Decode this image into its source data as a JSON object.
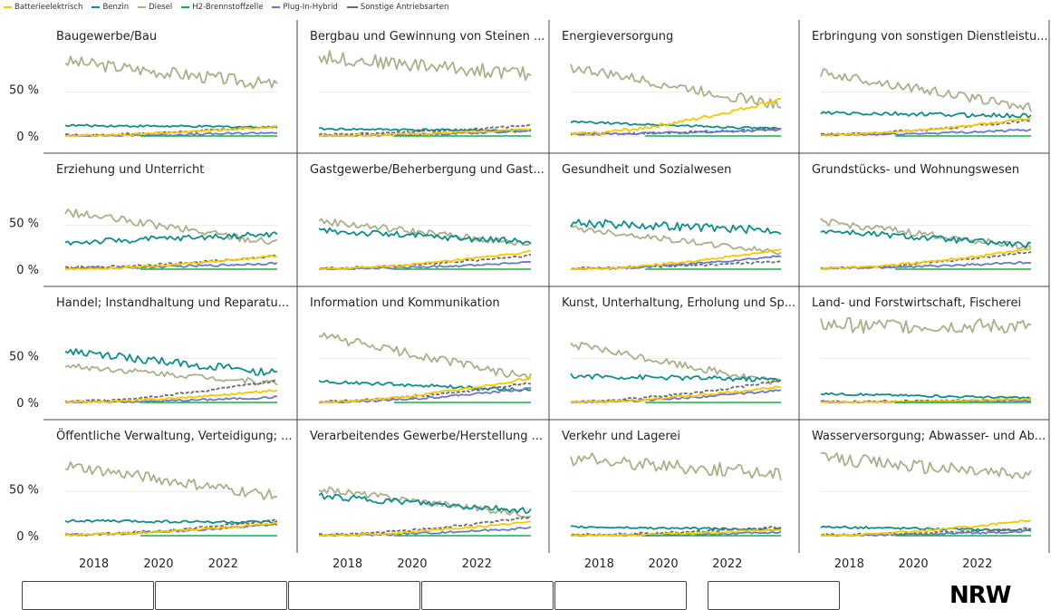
{
  "legend": {
    "series": [
      {
        "name": "Batterieelektrisch",
        "color": "#F5C800",
        "dash": false
      },
      {
        "name": "Benzin",
        "color": "#118C8C",
        "dash": false
      },
      {
        "name": "Diesel",
        "color": "#A8B08C",
        "dash": false
      },
      {
        "name": "H2-Brennstoffzelle",
        "color": "#12B04C",
        "dash": false
      },
      {
        "name": "Plug-In-Hybrid",
        "color": "#6E76C8",
        "dash": false
      },
      {
        "name": "Sonstige Antriebsarten",
        "color": "#6B6B6B",
        "dash": true
      }
    ]
  },
  "axis": {
    "y_tick_labels": [
      "50 %",
      "0 %"
    ],
    "x_tick_labels": [
      "2018",
      "2020",
      "2022"
    ]
  },
  "chart_data": {
    "type": "line",
    "y_unit": "%",
    "ylim": [
      0,
      100
    ],
    "x_range": [
      "2017-01",
      "2023-08"
    ],
    "grid": true,
    "legend_position": "top-left",
    "series_names": [
      "Batterieelektrisch",
      "Benzin",
      "Diesel",
      "H2-Brennstoffzelle",
      "Plug-In-Hybrid",
      "Sonstige Antriebsarten"
    ],
    "panels": [
      {
        "title": "Baugewerbe/Bau",
        "trends": {
          "Batterieelektrisch": [
            0,
            11
          ],
          "Benzin": [
            12,
            10
          ],
          "Diesel": [
            85,
            58
          ],
          "H2-Brennstoffzelle": [
            0,
            0
          ],
          "Plug-In-Hybrid": [
            0,
            4
          ],
          "Sonstige Antriebsarten": [
            1,
            11
          ]
        }
      },
      {
        "title": "Bergbau und Gewinnung von Steinen ...",
        "trends": {
          "Batterieelektrisch": [
            0,
            8
          ],
          "Benzin": [
            8,
            6
          ],
          "Diesel": [
            90,
            70
          ],
          "H2-Brennstoffzelle": [
            0,
            0
          ],
          "Plug-In-Hybrid": [
            0,
            6
          ],
          "Sonstige Antriebsarten": [
            2,
            12
          ]
        }
      },
      {
        "title": "Energieversorgung",
        "trends": {
          "Batterieelektrisch": [
            2,
            42
          ],
          "Benzin": [
            16,
            8
          ],
          "Diesel": [
            78,
            35
          ],
          "H2-Brennstoffzelle": [
            0,
            0
          ],
          "Plug-In-Hybrid": [
            2,
            7
          ],
          "Sonstige Antriebsarten": [
            2,
            8
          ]
        }
      },
      {
        "title": "Erbringung von sonstigen Dienstleistu...",
        "trends": {
          "Batterieelektrisch": [
            1,
            20
          ],
          "Benzin": [
            26,
            23
          ],
          "Diesel": [
            72,
            32
          ],
          "H2-Brennstoffzelle": [
            0,
            0
          ],
          "Plug-In-Hybrid": [
            1,
            7
          ],
          "Sonstige Antriebsarten": [
            2,
            18
          ]
        }
      },
      {
        "title": "Erziehung und Unterricht",
        "trends": {
          "Batterieelektrisch": [
            0,
            15
          ],
          "Benzin": [
            30,
            40
          ],
          "Diesel": [
            65,
            30
          ],
          "H2-Brennstoffzelle": [
            0,
            0
          ],
          "Plug-In-Hybrid": [
            1,
            7
          ],
          "Sonstige Antriebsarten": [
            2,
            15
          ]
        }
      },
      {
        "title": "Gastgewerbe/Beherbergung und Gast...",
        "trends": {
          "Batterieelektrisch": [
            0,
            20
          ],
          "Benzin": [
            44,
            31
          ],
          "Diesel": [
            55,
            28
          ],
          "H2-Brennstoffzelle": [
            0,
            0
          ],
          "Plug-In-Hybrid": [
            0,
            8
          ],
          "Sonstige Antriebsarten": [
            1,
            16
          ]
        }
      },
      {
        "title": "Gesundheit und Sozialwesen",
        "trends": {
          "Batterieelektrisch": [
            0,
            22
          ],
          "Benzin": [
            53,
            44
          ],
          "Diesel": [
            47,
            19
          ],
          "H2-Brennstoffzelle": [
            0,
            0
          ],
          "Plug-In-Hybrid": [
            0,
            15
          ],
          "Sonstige Antriebsarten": [
            1,
            9
          ]
        }
      },
      {
        "title": "Grundstücks- und Wohnungswesen",
        "trends": {
          "Batterieelektrisch": [
            1,
            23
          ],
          "Benzin": [
            44,
            27
          ],
          "Diesel": [
            54,
            25
          ],
          "H2-Brennstoffzelle": [
            0,
            0
          ],
          "Plug-In-Hybrid": [
            1,
            8
          ],
          "Sonstige Antriebsarten": [
            1,
            20
          ]
        }
      },
      {
        "title": "Handel; Instandhaltung und Reparatu...",
        "trends": {
          "Batterieelektrisch": [
            0,
            14
          ],
          "Benzin": [
            58,
            33
          ],
          "Diesel": [
            42,
            22
          ],
          "H2-Brennstoffzelle": [
            0,
            0
          ],
          "Plug-In-Hybrid": [
            0,
            6
          ],
          "Sonstige Antriebsarten": [
            1,
            25
          ]
        }
      },
      {
        "title": "Information und Kommunikation",
        "trends": {
          "Batterieelektrisch": [
            0,
            28
          ],
          "Benzin": [
            24,
            14
          ],
          "Diesel": [
            76,
            28
          ],
          "H2-Brennstoffzelle": [
            0,
            0
          ],
          "Plug-In-Hybrid": [
            0,
            16
          ],
          "Sonstige Antriebsarten": [
            1,
            22
          ]
        }
      },
      {
        "title": "Kunst, Unterhaltung, Erholung und Sp...",
        "trends": {
          "Batterieelektrisch": [
            0,
            18
          ],
          "Benzin": [
            30,
            26
          ],
          "Diesel": [
            66,
            22
          ],
          "H2-Brennstoffzelle": [
            0,
            0
          ],
          "Plug-In-Hybrid": [
            0,
            14
          ],
          "Sonstige Antriebsarten": [
            1,
            25
          ]
        }
      },
      {
        "title": "Land- und Forstwirtschaft, Fischerei",
        "trends": {
          "Batterieelektrisch": [
            0,
            4
          ],
          "Benzin": [
            10,
            5
          ],
          "Diesel": [
            88,
            86
          ],
          "H2-Brennstoffzelle": [
            0,
            0
          ],
          "Plug-In-Hybrid": [
            0,
            2
          ],
          "Sonstige Antriebsarten": [
            1,
            3
          ]
        }
      },
      {
        "title": "Öffentliche Verwaltung, Verteidigung; ...",
        "trends": {
          "Batterieelektrisch": [
            1,
            14
          ],
          "Benzin": [
            17,
            15
          ],
          "Diesel": [
            80,
            45
          ],
          "H2-Brennstoffzelle": [
            0,
            0
          ],
          "Plug-In-Hybrid": [
            1,
            13
          ],
          "Sonstige Antriebsarten": [
            1,
            18
          ]
        }
      },
      {
        "title": "Verarbeitendes Gewerbe/Herstellung ...",
        "trends": {
          "Batterieelektrisch": [
            0,
            16
          ],
          "Benzin": [
            45,
            28
          ],
          "Diesel": [
            53,
            24
          ],
          "H2-Brennstoffzelle": [
            0,
            0
          ],
          "Plug-In-Hybrid": [
            0,
            9
          ],
          "Sonstige Antriebsarten": [
            1,
            21
          ]
        }
      },
      {
        "title": "Verkehr und Lagerei",
        "trends": {
          "Batterieelektrisch": [
            0,
            7
          ],
          "Benzin": [
            10,
            7
          ],
          "Diesel": [
            88,
            70
          ],
          "H2-Brennstoffzelle": [
            0,
            0
          ],
          "Plug-In-Hybrid": [
            0,
            4
          ],
          "Sonstige Antriebsarten": [
            1,
            10
          ]
        }
      },
      {
        "title": "Wasserversorgung; Abwasser- und Ab...",
        "trends": {
          "Batterieelektrisch": [
            0,
            18
          ],
          "Benzin": [
            10,
            6
          ],
          "Diesel": [
            88,
            68
          ],
          "H2-Brennstoffzelle": [
            0,
            0
          ],
          "Plug-In-Hybrid": [
            0,
            5
          ],
          "Sonstige Antriebsarten": [
            1,
            8
          ]
        }
      }
    ]
  },
  "logo": {
    "text": "NRW"
  }
}
